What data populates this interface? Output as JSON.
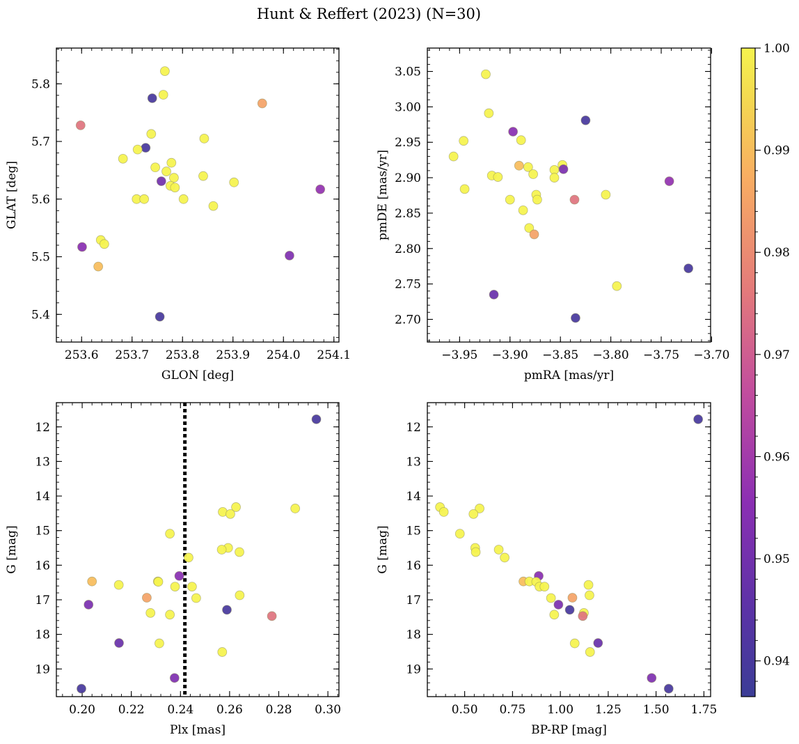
{
  "figure": {
    "title": "Hunt & Reffert (2023) (N=30)"
  },
  "colorbar": {
    "min": 0.9365,
    "max": 1.0,
    "ticks": [
      "0.94",
      "0.95",
      "0.96",
      "0.97",
      "0.98",
      "0.99",
      "1.00"
    ],
    "tick_values": [
      0.94,
      0.95,
      0.96,
      0.97,
      0.98,
      0.99,
      1.0
    ],
    "colormap": "plasma"
  },
  "chart_data": [
    {
      "type": "scatter",
      "xlabel": "GLON [deg]",
      "ylabel": "GLAT [deg]",
      "xlim": [
        253.55,
        254.11
      ],
      "ylim": [
        5.352,
        5.862
      ],
      "xticks": [
        253.6,
        253.7,
        253.8,
        253.9,
        254.0,
        254.1
      ],
      "xtick_labels": [
        "253.6",
        "253.7",
        "253.8",
        "253.9",
        "254.0",
        "254.1"
      ],
      "yticks": [
        5.4,
        5.5,
        5.6,
        5.7,
        5.8
      ],
      "ytick_labels": [
        "5.4",
        "5.5",
        "5.6",
        "5.7",
        "5.8"
      ],
      "points": [
        {
          "x": 253.765,
          "y": 5.822,
          "c": 1.0
        },
        {
          "x": 253.74,
          "y": 5.775,
          "c": 0.94
        },
        {
          "x": 253.762,
          "y": 5.781,
          "c": 1.0
        },
        {
          "x": 253.958,
          "y": 5.766,
          "c": 0.985
        },
        {
          "x": 253.598,
          "y": 5.728,
          "c": 0.975
        },
        {
          "x": 253.738,
          "y": 5.713,
          "c": 1.0
        },
        {
          "x": 253.843,
          "y": 5.705,
          "c": 1.0
        },
        {
          "x": 253.727,
          "y": 5.689,
          "c": 0.94
        },
        {
          "x": 253.711,
          "y": 5.686,
          "c": 1.0
        },
        {
          "x": 253.682,
          "y": 5.67,
          "c": 1.0
        },
        {
          "x": 253.778,
          "y": 5.663,
          "c": 1.0
        },
        {
          "x": 253.746,
          "y": 5.655,
          "c": 1.0
        },
        {
          "x": 253.768,
          "y": 5.648,
          "c": 1.0
        },
        {
          "x": 253.841,
          "y": 5.64,
          "c": 1.0
        },
        {
          "x": 253.783,
          "y": 5.637,
          "c": 1.0
        },
        {
          "x": 253.758,
          "y": 5.631,
          "c": 0.95
        },
        {
          "x": 253.902,
          "y": 5.629,
          "c": 1.0
        },
        {
          "x": 253.776,
          "y": 5.623,
          "c": 1.0
        },
        {
          "x": 253.785,
          "y": 5.62,
          "c": 1.0
        },
        {
          "x": 254.073,
          "y": 5.617,
          "c": 0.957
        },
        {
          "x": 253.709,
          "y": 5.6,
          "c": 1.0
        },
        {
          "x": 253.724,
          "y": 5.6,
          "c": 1.0
        },
        {
          "x": 253.802,
          "y": 5.6,
          "c": 1.0
        },
        {
          "x": 253.861,
          "y": 5.588,
          "c": 1.0
        },
        {
          "x": 253.638,
          "y": 5.529,
          "c": 1.0
        },
        {
          "x": 253.645,
          "y": 5.522,
          "c": 1.0
        },
        {
          "x": 253.601,
          "y": 5.517,
          "c": 0.955
        },
        {
          "x": 254.012,
          "y": 5.502,
          "c": 0.953
        },
        {
          "x": 253.633,
          "y": 5.483,
          "c": 0.99
        },
        {
          "x": 253.755,
          "y": 5.396,
          "c": 0.94
        }
      ]
    },
    {
      "type": "scatter",
      "xlabel": "pmRA [mas/yr]",
      "ylabel": "pmDE [mas/yr]",
      "xlim": [
        -3.982,
        -3.701
      ],
      "ylim": [
        2.668,
        3.083
      ],
      "xticks": [
        -3.95,
        -3.9,
        -3.85,
        -3.8,
        -3.75,
        -3.7
      ],
      "xtick_labels": [
        "−3.95",
        "−3.90",
        "−3.85",
        "−3.80",
        "−3.75",
        "−3.70"
      ],
      "yticks": [
        2.7,
        2.75,
        2.8,
        2.85,
        2.9,
        2.95,
        3.0,
        3.05
      ],
      "ytick_labels": [
        "2.70",
        "2.75",
        "2.80",
        "2.85",
        "2.90",
        "2.95",
        "3.00",
        "3.05"
      ],
      "points": [
        {
          "x": -3.924,
          "y": 3.046,
          "c": 1.0
        },
        {
          "x": -3.921,
          "y": 2.991,
          "c": 1.0
        },
        {
          "x": -3.825,
          "y": 2.981,
          "c": 0.94
        },
        {
          "x": -3.897,
          "y": 2.965,
          "c": 0.955
        },
        {
          "x": -3.889,
          "y": 2.953,
          "c": 1.0
        },
        {
          "x": -3.946,
          "y": 2.952,
          "c": 1.0
        },
        {
          "x": -3.956,
          "y": 2.93,
          "c": 1.0
        },
        {
          "x": -3.848,
          "y": 2.918,
          "c": 1.0
        },
        {
          "x": -3.891,
          "y": 2.917,
          "c": 0.99
        },
        {
          "x": -3.882,
          "y": 2.915,
          "c": 1.0
        },
        {
          "x": -3.847,
          "y": 2.912,
          "c": 0.952
        },
        {
          "x": -3.856,
          "y": 2.911,
          "c": 1.0
        },
        {
          "x": -3.877,
          "y": 2.905,
          "c": 1.0
        },
        {
          "x": -3.918,
          "y": 2.903,
          "c": 1.0
        },
        {
          "x": -3.912,
          "y": 2.901,
          "c": 1.0
        },
        {
          "x": -3.856,
          "y": 2.9,
          "c": 1.0
        },
        {
          "x": -3.742,
          "y": 2.895,
          "c": 0.957
        },
        {
          "x": -3.874,
          "y": 2.876,
          "c": 1.0
        },
        {
          "x": -3.805,
          "y": 2.876,
          "c": 1.0
        },
        {
          "x": -3.9,
          "y": 2.869,
          "c": 1.0
        },
        {
          "x": -3.873,
          "y": 2.869,
          "c": 1.0
        },
        {
          "x": -3.836,
          "y": 2.869,
          "c": 0.975
        },
        {
          "x": -3.945,
          "y": 2.884,
          "c": 1.0
        },
        {
          "x": -3.887,
          "y": 2.854,
          "c": 1.0
        },
        {
          "x": -3.881,
          "y": 2.829,
          "c": 1.0
        },
        {
          "x": -3.876,
          "y": 2.82,
          "c": 0.985
        },
        {
          "x": -3.723,
          "y": 2.772,
          "c": 0.94
        },
        {
          "x": -3.794,
          "y": 2.747,
          "c": 1.0
        },
        {
          "x": -3.916,
          "y": 2.735,
          "c": 0.948
        },
        {
          "x": -3.835,
          "y": 2.702,
          "c": 0.94
        }
      ]
    },
    {
      "type": "scatter",
      "xlabel": "Plx [mas]",
      "ylabel": "G [mag]",
      "xlim": [
        0.1895,
        0.3045
      ],
      "ylim": [
        19.8,
        11.3
      ],
      "y_inverted": true,
      "xticks": [
        0.2,
        0.22,
        0.24,
        0.26,
        0.28,
        0.3
      ],
      "xtick_labels": [
        "0.20",
        "0.22",
        "0.24",
        "0.26",
        "0.28",
        "0.30"
      ],
      "yticks": [
        12,
        13,
        14,
        15,
        16,
        17,
        18,
        19
      ],
      "ytick_labels": [
        "12",
        "13",
        "14",
        "15",
        "16",
        "17",
        "18",
        "19"
      ],
      "vline": {
        "x": 0.2418,
        "style": "dotted"
      },
      "points": [
        {
          "x": 0.2953,
          "y": 11.78,
          "c": 0.94
        },
        {
          "x": 0.2626,
          "y": 14.32,
          "c": 1.0
        },
        {
          "x": 0.2867,
          "y": 14.36,
          "c": 1.0
        },
        {
          "x": 0.2572,
          "y": 14.46,
          "c": 1.0
        },
        {
          "x": 0.2603,
          "y": 14.52,
          "c": 1.0
        },
        {
          "x": 0.2357,
          "y": 15.09,
          "c": 1.0
        },
        {
          "x": 0.2594,
          "y": 15.5,
          "c": 1.0
        },
        {
          "x": 0.2568,
          "y": 15.55,
          "c": 1.0
        },
        {
          "x": 0.264,
          "y": 15.62,
          "c": 1.0
        },
        {
          "x": 0.2433,
          "y": 15.78,
          "c": 1.0
        },
        {
          "x": 0.2395,
          "y": 16.31,
          "c": 0.955
        },
        {
          "x": 0.204,
          "y": 16.47,
          "c": 0.99
        },
        {
          "x": 0.2308,
          "y": 16.47,
          "c": 1.0
        },
        {
          "x": 0.231,
          "y": 16.48,
          "c": 1.0
        },
        {
          "x": 0.2149,
          "y": 16.57,
          "c": 1.0
        },
        {
          "x": 0.2447,
          "y": 16.62,
          "c": 1.0
        },
        {
          "x": 0.2378,
          "y": 16.62,
          "c": 1.0
        },
        {
          "x": 0.2641,
          "y": 16.87,
          "c": 1.0
        },
        {
          "x": 0.2263,
          "y": 16.94,
          "c": 0.985
        },
        {
          "x": 0.2464,
          "y": 16.95,
          "c": 1.0
        },
        {
          "x": 0.2026,
          "y": 17.14,
          "c": 0.952
        },
        {
          "x": 0.2589,
          "y": 17.29,
          "c": 0.94
        },
        {
          "x": 0.2278,
          "y": 17.38,
          "c": 1.0
        },
        {
          "x": 0.2357,
          "y": 17.43,
          "c": 1.0
        },
        {
          "x": 0.2772,
          "y": 17.47,
          "c": 0.975
        },
        {
          "x": 0.215,
          "y": 18.25,
          "c": 0.948
        },
        {
          "x": 0.2314,
          "y": 18.26,
          "c": 1.0
        },
        {
          "x": 0.257,
          "y": 18.51,
          "c": 1.0
        },
        {
          "x": 0.2376,
          "y": 19.26,
          "c": 0.953
        },
        {
          "x": 0.1997,
          "y": 19.57,
          "c": 0.94
        }
      ]
    },
    {
      "type": "scatter",
      "xlabel": "BP-RP [mag]",
      "ylabel": "G [mag]",
      "xlim": [
        0.305,
        1.785
      ],
      "ylim": [
        19.8,
        11.3
      ],
      "y_inverted": true,
      "xticks": [
        0.5,
        0.75,
        1.0,
        1.25,
        1.5,
        1.75
      ],
      "xtick_labels": [
        "0.50",
        "0.75",
        "1.00",
        "1.25",
        "1.50",
        "1.75"
      ],
      "yticks": [
        12,
        13,
        14,
        15,
        16,
        17,
        18,
        19
      ],
      "ytick_labels": [
        "12",
        "13",
        "14",
        "15",
        "16",
        "17",
        "18",
        "19"
      ],
      "points": [
        {
          "x": 1.72,
          "y": 11.78,
          "c": 0.94
        },
        {
          "x": 0.371,
          "y": 14.32,
          "c": 1.0
        },
        {
          "x": 0.578,
          "y": 14.36,
          "c": 1.0
        },
        {
          "x": 0.391,
          "y": 14.46,
          "c": 1.0
        },
        {
          "x": 0.546,
          "y": 14.52,
          "c": 1.0
        },
        {
          "x": 0.475,
          "y": 15.09,
          "c": 1.0
        },
        {
          "x": 0.555,
          "y": 15.5,
          "c": 1.0
        },
        {
          "x": 0.558,
          "y": 15.62,
          "c": 1.0
        },
        {
          "x": 0.678,
          "y": 15.55,
          "c": 1.0
        },
        {
          "x": 0.709,
          "y": 15.78,
          "c": 1.0
        },
        {
          "x": 0.887,
          "y": 16.31,
          "c": 0.955
        },
        {
          "x": 0.807,
          "y": 16.47,
          "c": 0.99
        },
        {
          "x": 0.838,
          "y": 16.47,
          "c": 1.0
        },
        {
          "x": 0.874,
          "y": 16.48,
          "c": 1.0
        },
        {
          "x": 1.147,
          "y": 16.57,
          "c": 1.0
        },
        {
          "x": 0.891,
          "y": 16.62,
          "c": 1.0
        },
        {
          "x": 0.917,
          "y": 16.62,
          "c": 1.0
        },
        {
          "x": 1.152,
          "y": 16.87,
          "c": 1.0
        },
        {
          "x": 1.063,
          "y": 16.94,
          "c": 0.985
        },
        {
          "x": 0.951,
          "y": 16.95,
          "c": 1.0
        },
        {
          "x": 0.99,
          "y": 17.14,
          "c": 0.952
        },
        {
          "x": 1.049,
          "y": 17.29,
          "c": 0.94
        },
        {
          "x": 1.123,
          "y": 17.38,
          "c": 1.0
        },
        {
          "x": 0.968,
          "y": 17.43,
          "c": 1.0
        },
        {
          "x": 1.117,
          "y": 17.47,
          "c": 0.975
        },
        {
          "x": 1.197,
          "y": 18.25,
          "c": 0.948
        },
        {
          "x": 1.075,
          "y": 18.26,
          "c": 1.0
        },
        {
          "x": 1.155,
          "y": 18.51,
          "c": 1.0
        },
        {
          "x": 1.477,
          "y": 19.26,
          "c": 0.953
        },
        {
          "x": 1.566,
          "y": 19.57,
          "c": 0.94
        }
      ]
    }
  ]
}
